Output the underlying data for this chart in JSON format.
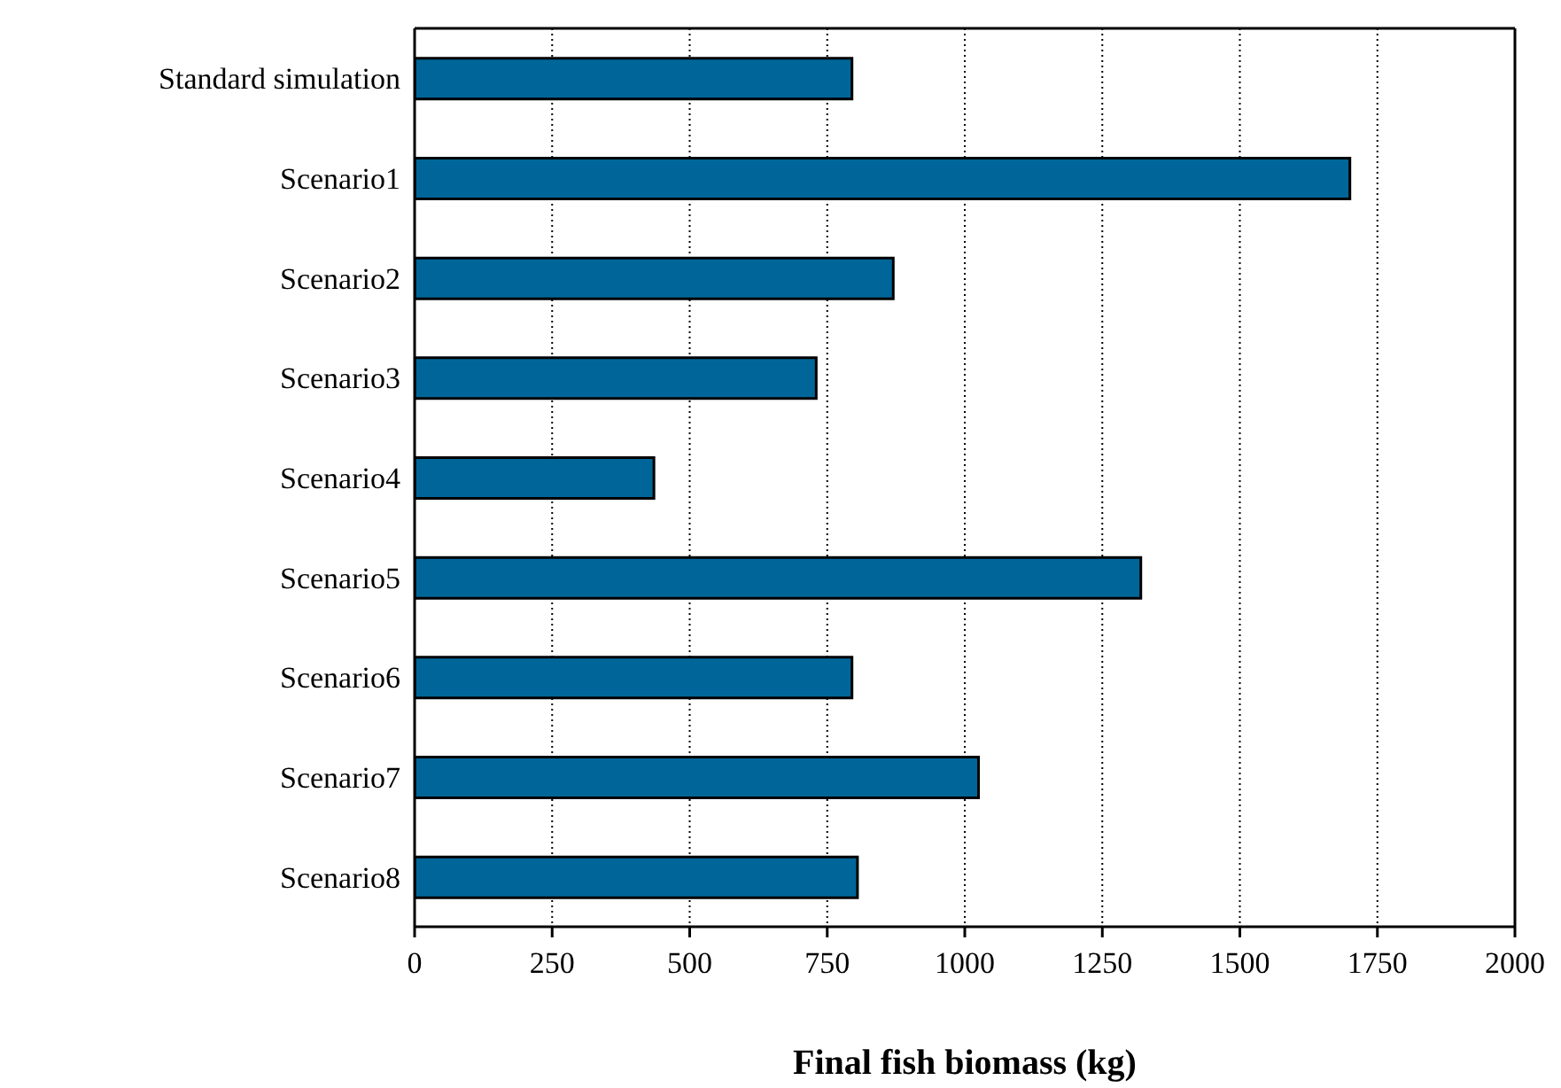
{
  "chart_data": {
    "type": "bar",
    "orientation": "horizontal",
    "xlabel": "Final fish biomass (kg)",
    "categories": [
      "Standard simulation",
      "Scenario1",
      "Scenario2",
      "Scenario3",
      "Scenario4",
      "Scenario5",
      "Scenario6",
      "Scenario7",
      "Scenario8"
    ],
    "values": [
      795,
      1700,
      870,
      730,
      435,
      1320,
      795,
      1025,
      805
    ],
    "color": "#006699",
    "xlim": [
      0,
      2000
    ],
    "xticks": [
      0,
      250,
      500,
      750,
      1000,
      1250,
      1500,
      1750,
      2000
    ],
    "grid": "x",
    "legend": false
  }
}
